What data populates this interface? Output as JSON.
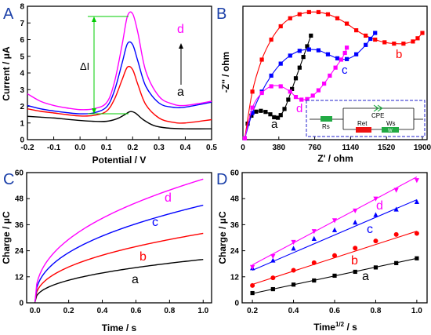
{
  "panel_labels": [
    "A",
    "B",
    "C",
    "D"
  ],
  "chart_data": [
    {
      "id": "A",
      "type": "line",
      "xlabel": "Potential / V",
      "ylabel": "Current / μA",
      "xlim": [
        -0.2,
        0.5
      ],
      "ylim": [
        0,
        8
      ],
      "xticks": [
        "-0.2",
        "-0.1",
        "0.0",
        "0.1",
        "0.2",
        "0.3",
        "0.4",
        "0.5"
      ],
      "yticks": [
        "0",
        "1",
        "2",
        "3",
        "4",
        "5",
        "6",
        "7",
        "8"
      ],
      "series": [
        {
          "name": "a",
          "color": "#000000",
          "x": [
            -0.2,
            -0.15,
            -0.1,
            -0.05,
            0.0,
            0.05,
            0.1,
            0.14,
            0.17,
            0.19,
            0.21,
            0.24,
            0.28,
            0.33,
            0.4,
            0.5
          ],
          "y": [
            1.4,
            1.35,
            1.3,
            1.22,
            1.15,
            1.1,
            1.1,
            1.25,
            1.5,
            1.68,
            1.6,
            1.2,
            0.85,
            0.7,
            0.65,
            0.65
          ]
        },
        {
          "name": "b",
          "color": "#ff0000",
          "x": [
            -0.2,
            -0.15,
            -0.1,
            -0.05,
            0.0,
            0.05,
            0.1,
            0.13,
            0.16,
            0.18,
            0.2,
            0.22,
            0.25,
            0.3,
            0.35,
            0.4,
            0.5
          ],
          "y": [
            1.85,
            1.7,
            1.6,
            1.5,
            1.42,
            1.45,
            1.7,
            2.4,
            3.6,
            4.35,
            4.2,
            3.3,
            2.1,
            1.3,
            1.05,
            1.0,
            1.2
          ]
        },
        {
          "name": "c",
          "color": "#0000ff",
          "x": [
            -0.2,
            -0.15,
            -0.1,
            -0.05,
            0.0,
            0.05,
            0.1,
            0.13,
            0.16,
            0.18,
            0.2,
            0.22,
            0.25,
            0.3,
            0.35,
            0.4,
            0.5
          ],
          "y": [
            2.05,
            1.85,
            1.72,
            1.62,
            1.55,
            1.6,
            1.95,
            2.9,
            4.6,
            5.75,
            5.7,
            4.7,
            3.2,
            2.2,
            1.95,
            1.95,
            2.25
          ]
        },
        {
          "name": "d",
          "color": "#ff00ff",
          "x": [
            -0.2,
            -0.15,
            -0.1,
            -0.05,
            0.0,
            0.05,
            0.1,
            0.13,
            0.16,
            0.18,
            0.2,
            0.22,
            0.25,
            0.3,
            0.35,
            0.4,
            0.5
          ],
          "y": [
            2.75,
            2.3,
            2.05,
            1.9,
            1.8,
            1.85,
            2.2,
            3.4,
            5.7,
            7.4,
            7.55,
            6.4,
            4.1,
            2.6,
            2.15,
            2.05,
            2.3
          ]
        }
      ],
      "annotations": {
        "delta_label": "ΔI",
        "arrow_from_label": "a",
        "arrow_to_label": "d"
      }
    },
    {
      "id": "B",
      "type": "scatter",
      "xlabel": "Z' / ohm",
      "ylabel": "-Z'' / ohm",
      "xlim": [
        0,
        1950
      ],
      "ylim": [
        0,
        500
      ],
      "xticks": [
        "0",
        "380",
        "760",
        "1140",
        "1520",
        "1900"
      ],
      "series": [
        {
          "name": "a",
          "color": "#000000",
          "marker": "square",
          "x": [
            20,
            50,
            90,
            140,
            190,
            240,
            290,
            330,
            370,
            400,
            440,
            480,
            520,
            560,
            600,
            640,
            680,
            720
          ],
          "y": [
            5,
            60,
            90,
            105,
            108,
            104,
            95,
            84,
            82,
            92,
            115,
            150,
            190,
            230,
            270,
            310,
            350,
            390
          ]
        },
        {
          "name": "b",
          "color": "#ff0000",
          "marker": "square",
          "x": [
            20,
            100,
            200,
            300,
            400,
            500,
            600,
            700,
            800,
            900,
            1000,
            1100,
            1200,
            1300,
            1400,
            1500,
            1600,
            1700,
            1800,
            1850,
            1900
          ],
          "y": [
            5,
            180,
            300,
            375,
            425,
            455,
            470,
            478,
            478,
            470,
            455,
            435,
            410,
            390,
            375,
            365,
            360,
            360,
            368,
            380,
            400
          ]
        },
        {
          "name": "c",
          "color": "#0000ff",
          "marker": "square",
          "x": [
            20,
            100,
            200,
            300,
            400,
            500,
            600,
            700,
            800,
            900,
            1000,
            1100,
            1200,
            1300,
            1350,
            1400
          ],
          "y": [
            5,
            100,
            180,
            240,
            285,
            315,
            333,
            338,
            335,
            320,
            305,
            302,
            320,
            355,
            378,
            400
          ]
        },
        {
          "name": "d",
          "color": "#ff00ff",
          "marker": "square",
          "x": [
            20,
            100,
            200,
            300,
            400,
            500,
            560,
            620,
            680,
            740,
            800,
            860,
            920,
            980,
            1040,
            1080,
            1100
          ],
          "y": [
            5,
            120,
            175,
            200,
            200,
            180,
            160,
            150,
            152,
            165,
            185,
            210,
            240,
            270,
            300,
            325,
            345
          ]
        }
      ],
      "inset": {
        "rs": "Rs",
        "cpe": "CPE",
        "ret": "Ret",
        "ws": "Ws",
        "w": "W"
      }
    },
    {
      "id": "C",
      "type": "line",
      "xlabel": "Time / s",
      "ylabel": "Charge / μC",
      "xlim": [
        -0.05,
        1.05
      ],
      "ylim": [
        0,
        60
      ],
      "xticks": [
        "0.0",
        "0.2",
        "0.4",
        "0.6",
        "0.8",
        "1.0"
      ],
      "yticks": [
        "0",
        "12",
        "24",
        "36",
        "48",
        "60"
      ],
      "series": [
        {
          "name": "a",
          "color": "#000000",
          "A": 20.0,
          "c0": 0.5
        },
        {
          "name": "b",
          "color": "#ff0000",
          "A": 32.0,
          "c0": 0.5
        },
        {
          "name": "c",
          "color": "#0000ff",
          "A": 45.0,
          "c0": 0.5
        },
        {
          "name": "d",
          "color": "#ff00ff",
          "A": 57.0,
          "c0": 0.5
        }
      ]
    },
    {
      "id": "D",
      "type": "scatter",
      "xlabel": "Time",
      "xlabel_sup": "1/2",
      "xlabel_unit": " / s",
      "ylabel": "Charge / μC",
      "xlim": [
        0.15,
        1.05
      ],
      "ylim": [
        0,
        60
      ],
      "xticks": [
        "0.2",
        "0.4",
        "0.6",
        "0.8",
        "1.0"
      ],
      "yticks": [
        "0",
        "12",
        "24",
        "36",
        "48",
        "60"
      ],
      "x": [
        0.2,
        0.3,
        0.4,
        0.5,
        0.6,
        0.7,
        0.8,
        0.9,
        1.0
      ],
      "series": [
        {
          "name": "a",
          "color": "#000000",
          "marker": "square",
          "y": [
            4.5,
            6.3,
            8.4,
            10.3,
            12.5,
            14.3,
            16.3,
            18.3,
            20.5
          ]
        },
        {
          "name": "b",
          "color": "#ff0000",
          "marker": "circle",
          "y": [
            8.0,
            11.5,
            15.0,
            18.5,
            21.8,
            25.2,
            28.5,
            31.5,
            32.0
          ]
        },
        {
          "name": "c",
          "color": "#0000ff",
          "marker": "triangle-up",
          "y": [
            16.0,
            19.5,
            25.0,
            29.5,
            33.5,
            37.0,
            40.5,
            43.0,
            46.5
          ]
        },
        {
          "name": "d",
          "color": "#ff00ff",
          "marker": "triangle-down",
          "y": [
            16.5,
            21.5,
            28.0,
            33.0,
            38.0,
            42.5,
            48.0,
            52.0,
            56.5
          ]
        }
      ],
      "fit_lines": [
        {
          "name": "a",
          "x0": 0.2,
          "y0": 4.3,
          "x1": 1.0,
          "y1": 20.5
        },
        {
          "name": "b",
          "x0": 0.2,
          "y0": 8.5,
          "x1": 1.0,
          "y1": 33.0
        },
        {
          "name": "c",
          "x0": 0.2,
          "y0": 15.0,
          "x1": 1.0,
          "y1": 47.5
        },
        {
          "name": "d",
          "x0": 0.2,
          "y0": 17.5,
          "x1": 1.0,
          "y1": 58.0
        }
      ]
    }
  ]
}
